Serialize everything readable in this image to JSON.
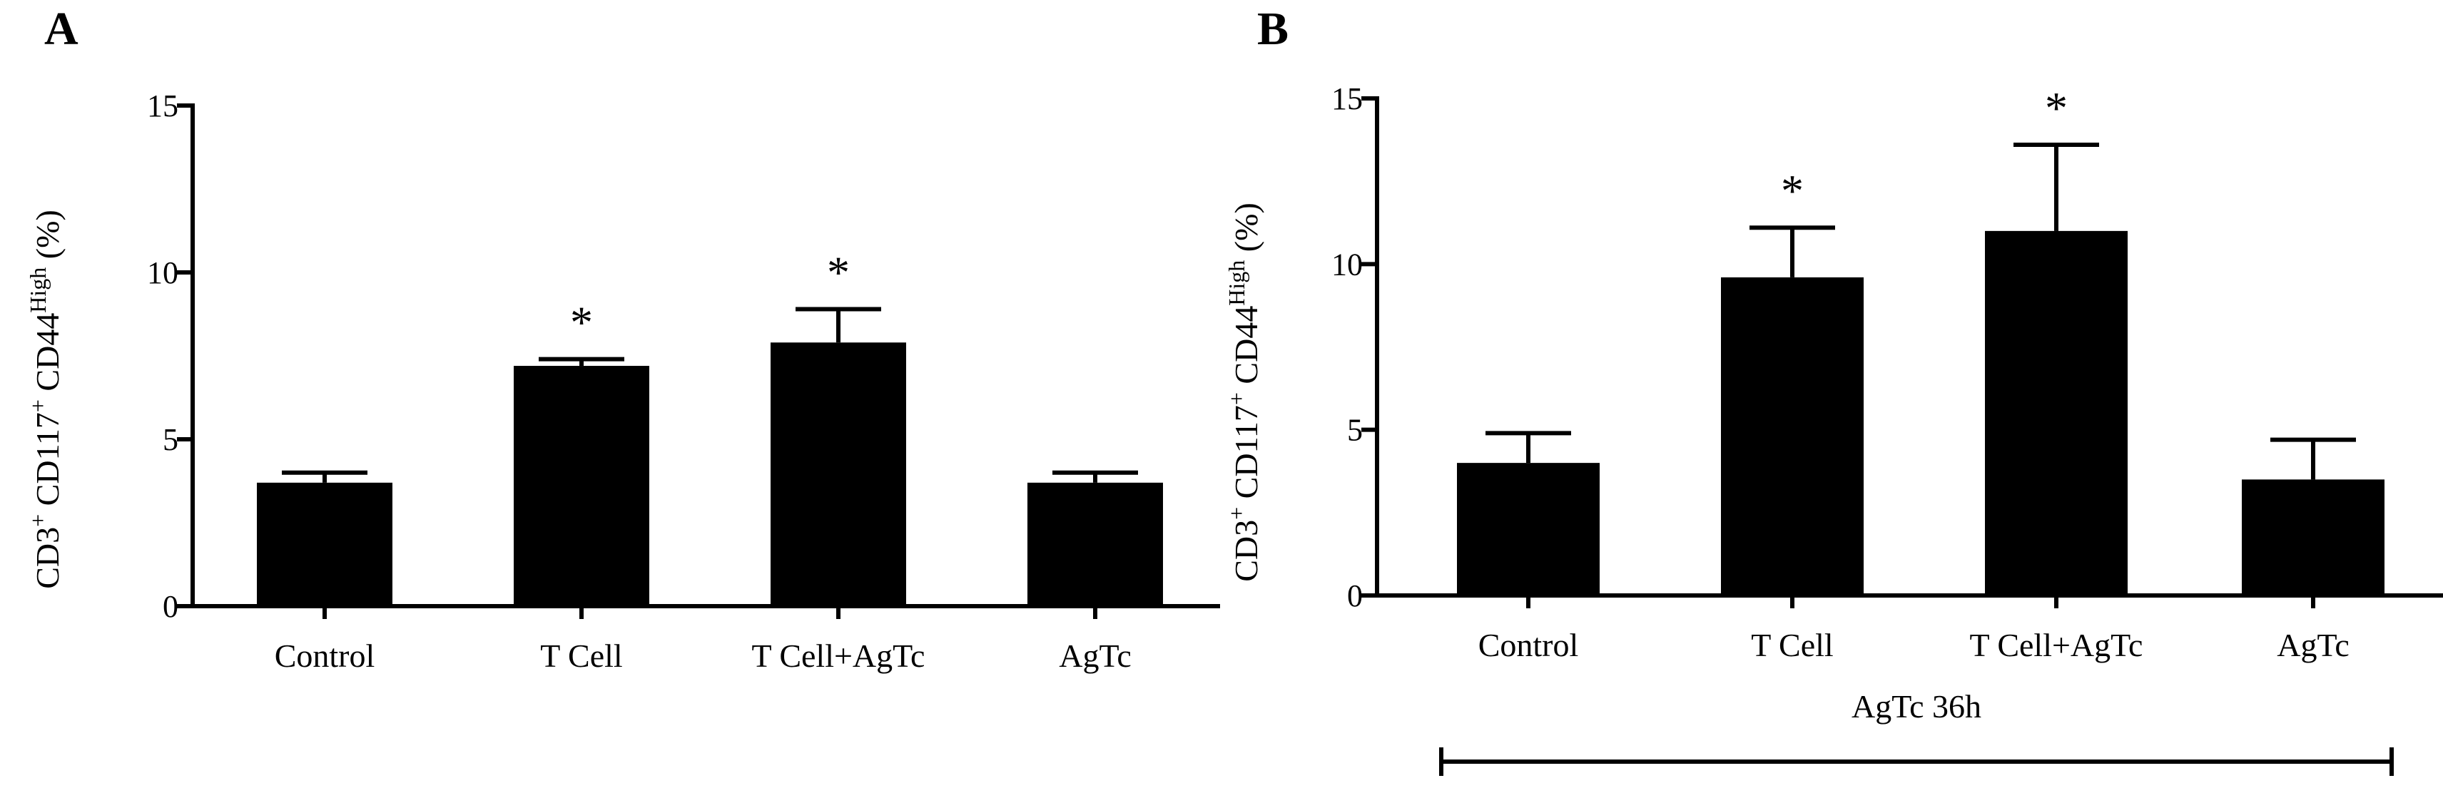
{
  "panels": [
    {
      "letter": "A",
      "ylabel": {
        "p1": "CD3",
        "p1sup": "+",
        "p2": " CD117",
        "p2sup": "+",
        "p3": " CD44",
        "p3sup": "High",
        "p4": " (%)"
      }
    },
    {
      "letter": "B",
      "ylabel": {
        "p1": "CD3",
        "p1sup": "+",
        "p2": " CD117",
        "p2sup": "+",
        "p3": " CD44",
        "p3sup": "High",
        "p4": " (%)"
      },
      "bracket_label": "AgTc 36h"
    }
  ],
  "chart_data": [
    {
      "type": "bar",
      "title": "",
      "panel": "A",
      "categories": [
        "Control",
        "T Cell",
        "T Cell+AgTc",
        "AgTc"
      ],
      "values": [
        3.7,
        7.2,
        7.9,
        3.7
      ],
      "errors": [
        0.3,
        0.2,
        1.0,
        0.3
      ],
      "significance": [
        "",
        "*",
        "*",
        ""
      ],
      "ylim": [
        0,
        15
      ],
      "yticks": [
        "0",
        "5",
        "10",
        "15"
      ],
      "xlabel": "",
      "ylabel": "CD3+ CD117+ CD44High (%)",
      "legend": "none",
      "grid": false
    },
    {
      "type": "bar",
      "title": "",
      "panel": "B",
      "categories": [
        "Control",
        "T Cell",
        "T Cell+AgTc",
        "AgTc"
      ],
      "values": [
        4.0,
        9.6,
        11.0,
        3.5
      ],
      "errors": [
        0.9,
        1.5,
        2.6,
        1.2
      ],
      "significance": [
        "",
        "*",
        "*",
        ""
      ],
      "ylim": [
        0,
        15
      ],
      "yticks": [
        "0",
        "5",
        "10",
        "15"
      ],
      "xlabel": "",
      "ylabel": "CD3+ CD117+ CD44High (%)",
      "legend": "none",
      "grid": false
    }
  ]
}
